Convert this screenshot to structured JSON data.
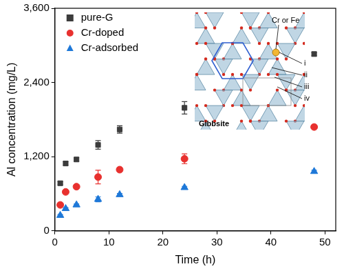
{
  "chart_data": {
    "type": "scatter",
    "x_label": "Time (h)",
    "y_label": "Al concentration (mg/L)",
    "xlim": [
      0,
      52
    ],
    "xticks": [
      0,
      10,
      20,
      30,
      40,
      50
    ],
    "ylim": [
      0,
      3600
    ],
    "yticks": [
      0,
      1200,
      2400,
      3600
    ],
    "grid": false,
    "legend": "upper left",
    "series": [
      {
        "name": "pure-G",
        "color": "#3c3c3c",
        "marker": "square",
        "x": [
          1,
          2,
          4,
          8,
          12,
          24,
          48
        ],
        "values": [
          770,
          1090,
          1155,
          1390,
          1640,
          1990,
          2860
        ],
        "errors": [
          30,
          30,
          30,
          70,
          60,
          100,
          30
        ]
      },
      {
        "name": "Cr-doped",
        "color": "#e8312f",
        "marker": "circle",
        "x": [
          1,
          2,
          4,
          8,
          12,
          24,
          48
        ],
        "values": [
          420,
          630,
          715,
          870,
          990,
          1165,
          1680
        ],
        "errors": [
          20,
          20,
          20,
          110,
          30,
          80,
          20
        ]
      },
      {
        "name": "Cr-adsorbed",
        "color": "#1e78d8",
        "marker": "triangle",
        "x": [
          1,
          2,
          4,
          8,
          12,
          24,
          48
        ],
        "values": [
          250,
          360,
          420,
          510,
          585,
          700,
          960
        ],
        "errors": [
          15,
          15,
          15,
          40,
          20,
          20,
          20
        ]
      }
    ],
    "annotations": [
      "Cr or Fe",
      "i",
      "ii",
      "iii",
      "iv",
      "Gibbsite"
    ]
  }
}
